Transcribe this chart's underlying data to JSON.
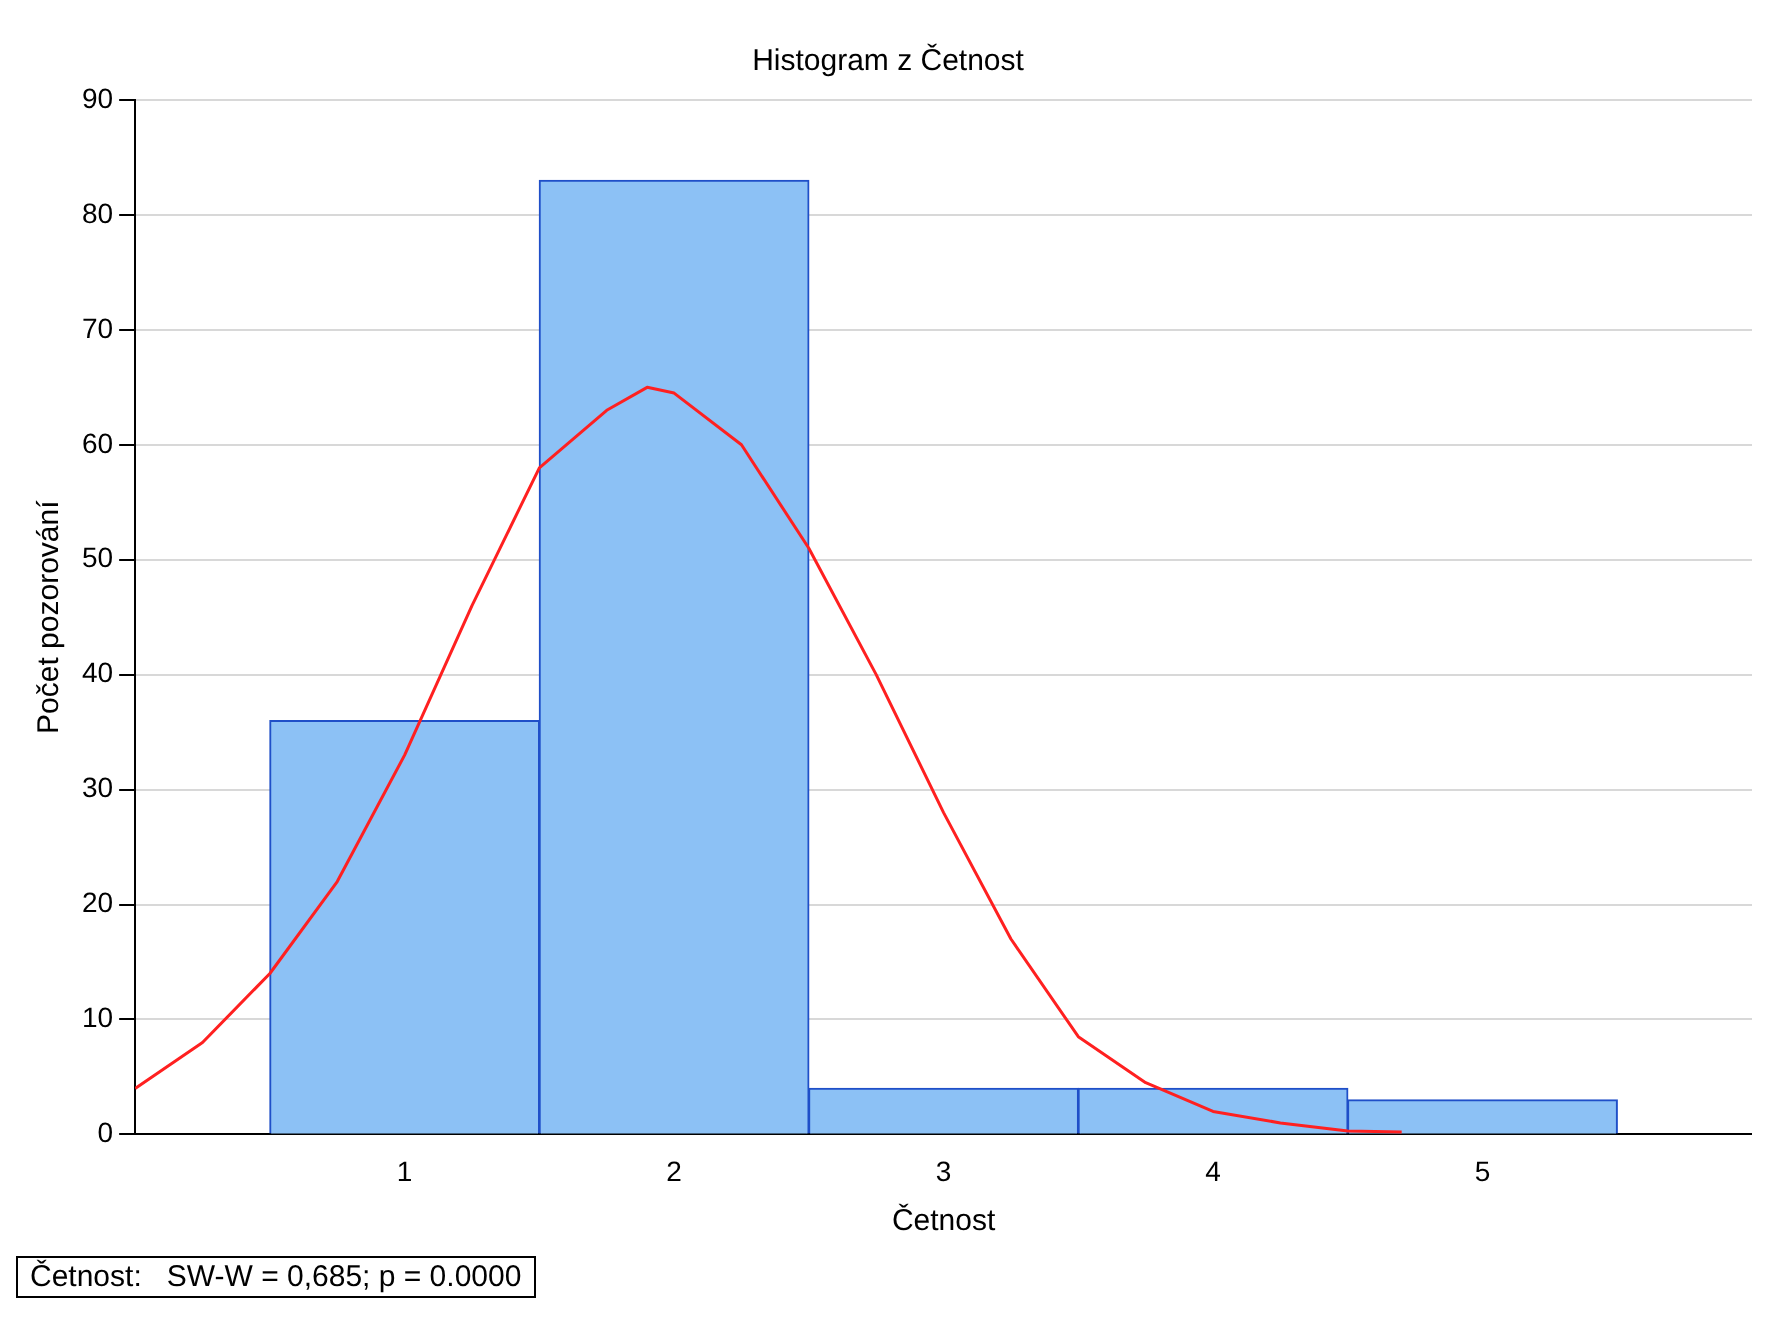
{
  "chart_data": {
    "type": "histogram",
    "title": "Histogram z Četnost",
    "xlabel": "Četnost",
    "ylabel": "Počet pozorování",
    "bins": [
      0.5,
      1.5,
      2.5,
      3.5,
      4.5,
      5.5
    ],
    "values": [
      36,
      83,
      4,
      4,
      3
    ],
    "color": "#8cc1f5",
    "series": [
      {
        "type": "line",
        "color": "#ff2020",
        "x": [
          0,
          0.25,
          0.5,
          0.75,
          1,
          1.25,
          1.5,
          1.75,
          1.9,
          2,
          2.25,
          2.5,
          2.75,
          3,
          3.25,
          3.5,
          3.75,
          4,
          4.25,
          4.5,
          4.7
        ],
        "values": [
          4,
          8,
          14,
          22,
          33,
          46,
          58,
          63,
          65,
          64.5,
          60,
          51,
          40,
          28,
          17,
          8.5,
          4.5,
          2,
          1,
          0.3,
          0.2
        ]
      }
    ],
    "xlim": [
      0,
      6
    ],
    "xticks": [
      1,
      2,
      3,
      4,
      5
    ],
    "ylim": [
      0,
      90
    ],
    "yticks": [
      0,
      10,
      20,
      30,
      40,
      50,
      60,
      70,
      80,
      90
    ],
    "grid": "y",
    "legend": false,
    "annotations": [
      "Četnost:   SW-W = 0,685; p = 0.0000"
    ]
  }
}
